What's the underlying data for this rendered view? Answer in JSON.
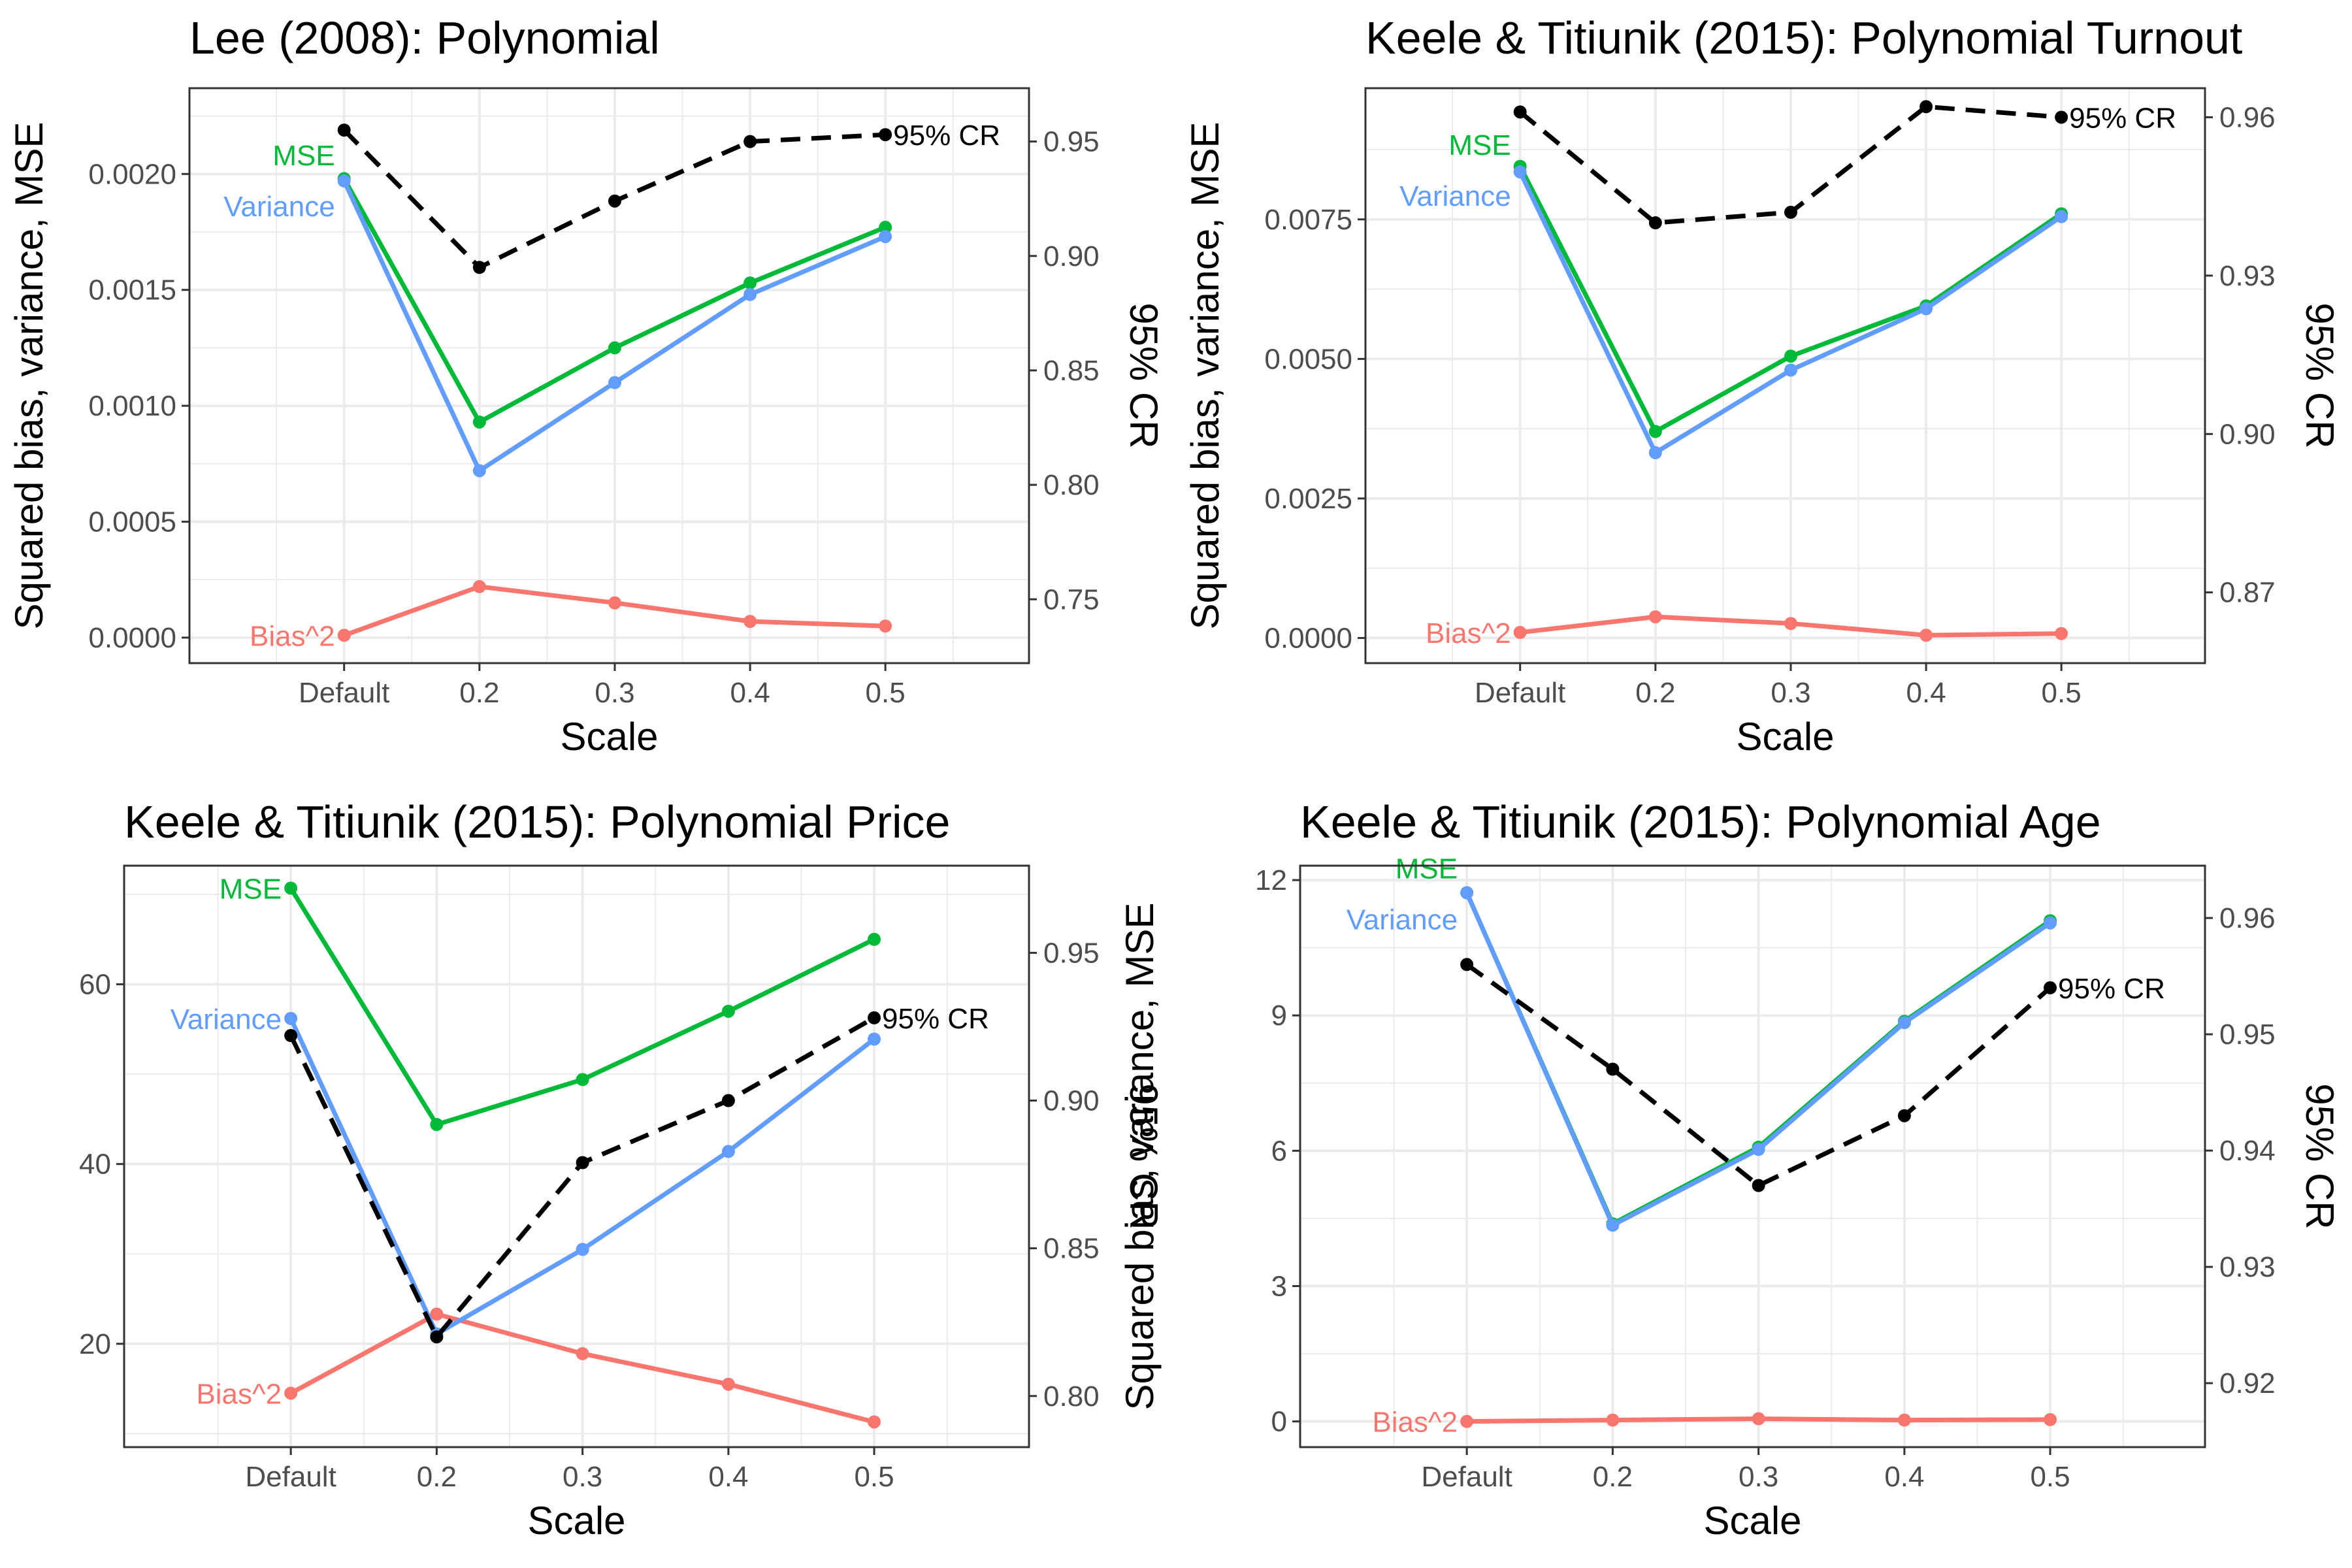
{
  "colors": {
    "bias": "#F8766D",
    "mse": "#00BA38",
    "variance": "#619CFF",
    "cr": "#000000",
    "grid": "#ebebeb",
    "panel_border": "#333333"
  },
  "chart_data": [
    {
      "type": "line",
      "title": "Lee (2008): Polynomial",
      "xlabel": "Scale",
      "ylabel": "Squared bias, variance, MSE",
      "y2label": "95% CR",
      "categories": [
        "Default",
        "0.2",
        "0.3",
        "0.4",
        "0.5"
      ],
      "ylim": [
        -0.00011,
        0.00237
      ],
      "yticks": [
        0.0,
        0.0005,
        0.001,
        0.0015,
        0.002
      ],
      "ytick_labels": [
        "0.0000",
        "0.0005",
        "0.0010",
        "0.0015",
        "0.0020"
      ],
      "y2lim": [
        0.7221,
        0.9733
      ],
      "y2ticks": [
        0.75,
        0.8,
        0.85,
        0.9,
        0.95
      ],
      "y2tick_labels": [
        "0.75",
        "0.80",
        "0.85",
        "0.90",
        "0.95"
      ],
      "series": [
        {
          "name": "Bias^2",
          "key": "bias",
          "axis": "left",
          "values": [
            1e-05,
            0.00022,
            0.00015,
            7e-05,
            5e-05
          ]
        },
        {
          "name": "MSE",
          "key": "mse",
          "axis": "left",
          "values": [
            0.00198,
            0.00093,
            0.00125,
            0.00153,
            0.00177
          ]
        },
        {
          "name": "Variance",
          "key": "variance",
          "axis": "left",
          "values": [
            0.00197,
            0.00072,
            0.0011,
            0.00148,
            0.00173
          ]
        },
        {
          "name": "95% CR",
          "key": "cr",
          "axis": "right",
          "dashed": true,
          "values": [
            0.955,
            0.895,
            0.924,
            0.95,
            0.953
          ]
        }
      ]
    },
    {
      "type": "line",
      "title": "Keele & Titiunik (2015): Polynomial Turnout",
      "xlabel": "Scale",
      "ylabel": "Squared bias, variance, MSE",
      "y2label": "95% CR",
      "categories": [
        "Default",
        "0.2",
        "0.3",
        "0.4",
        "0.5"
      ],
      "ylim": [
        -0.00045,
        0.00985
      ],
      "yticks": [
        0.0,
        0.0025,
        0.005,
        0.0075
      ],
      "ytick_labels": [
        "0.0000",
        "0.0025",
        "0.0050",
        "0.0075"
      ],
      "y2lim": [
        0.8566,
        0.9655
      ],
      "y2ticks": [
        0.87,
        0.9,
        0.93,
        0.96
      ],
      "y2tick_labels": [
        "0.87",
        "0.90",
        "0.93",
        "0.96"
      ],
      "series": [
        {
          "name": "Bias^2",
          "key": "bias",
          "axis": "left",
          "values": [
            0.0001,
            0.00038,
            0.00026,
            5e-05,
            8e-05
          ]
        },
        {
          "name": "MSE",
          "key": "mse",
          "axis": "left",
          "values": [
            0.00845,
            0.0037,
            0.00505,
            0.00595,
            0.0076
          ]
        },
        {
          "name": "Variance",
          "key": "variance",
          "axis": "left",
          "values": [
            0.00835,
            0.00332,
            0.0048,
            0.0059,
            0.00755
          ]
        },
        {
          "name": "95% CR",
          "key": "cr",
          "axis": "right",
          "dashed": true,
          "values": [
            0.961,
            0.94,
            0.942,
            0.962,
            0.96
          ]
        }
      ]
    },
    {
      "type": "line",
      "title": "Keele & Titiunik (2015): Polynomial Price",
      "xlabel": "Scale",
      "ylabel": "Squared bias, variance, MSE",
      "y2label": "95% CR",
      "categories": [
        "Default",
        "0.2",
        "0.3",
        "0.4",
        "0.5"
      ],
      "ylim": [
        8.5,
        73.2
      ],
      "yticks": [
        20,
        40,
        60
      ],
      "ytick_labels": [
        "20",
        "40",
        "60"
      ],
      "y2lim": [
        0.7827,
        0.9795
      ],
      "y2ticks": [
        0.8,
        0.85,
        0.9,
        0.95
      ],
      "y2tick_labels": [
        "0.80",
        "0.85",
        "0.90",
        "0.95"
      ],
      "series": [
        {
          "name": "Bias^2",
          "key": "bias",
          "axis": "left",
          "values": [
            14.5,
            23.3,
            18.9,
            15.5,
            11.3
          ]
        },
        {
          "name": "MSE",
          "key": "mse",
          "axis": "left",
          "values": [
            70.7,
            44.4,
            49.4,
            57.0,
            65.0
          ]
        },
        {
          "name": "Variance",
          "key": "variance",
          "axis": "left",
          "values": [
            56.2,
            21.1,
            30.5,
            41.4,
            53.9
          ]
        },
        {
          "name": "95% CR",
          "key": "cr",
          "axis": "right",
          "dashed": true,
          "values": [
            0.922,
            0.82,
            0.879,
            0.9,
            0.928
          ]
        }
      ]
    },
    {
      "type": "line",
      "title": "Keele & Titiunik (2015): Polynomial Age",
      "xlabel": "Scale",
      "ylabel": "Squared bias, variance, MSE",
      "y2label": "95% CR",
      "categories": [
        "Default",
        "0.2",
        "0.3",
        "0.4",
        "0.5"
      ],
      "ylim": [
        -0.57,
        12.32
      ],
      "yticks": [
        0,
        3,
        6,
        9,
        12
      ],
      "ytick_labels": [
        "0",
        "3",
        "6",
        "9",
        "12"
      ],
      "y2lim": [
        0.9145,
        0.9645
      ],
      "y2ticks": [
        0.92,
        0.93,
        0.94,
        0.95,
        0.96
      ],
      "y2tick_labels": [
        "0.92",
        "0.93",
        "0.94",
        "0.95",
        "0.96"
      ],
      "series": [
        {
          "name": "Bias^2",
          "key": "bias",
          "axis": "left",
          "values": [
            0.0,
            0.03,
            0.06,
            0.03,
            0.04
          ]
        },
        {
          "name": "MSE",
          "key": "mse",
          "axis": "left",
          "values": [
            11.72,
            4.38,
            6.08,
            8.87,
            11.1
          ]
        },
        {
          "name": "Variance",
          "key": "variance",
          "axis": "left",
          "values": [
            11.72,
            4.35,
            6.03,
            8.84,
            11.05
          ]
        },
        {
          "name": "95% CR",
          "key": "cr",
          "axis": "right",
          "dashed": true,
          "values": [
            0.956,
            0.947,
            0.937,
            0.943,
            0.954
          ]
        }
      ]
    }
  ]
}
